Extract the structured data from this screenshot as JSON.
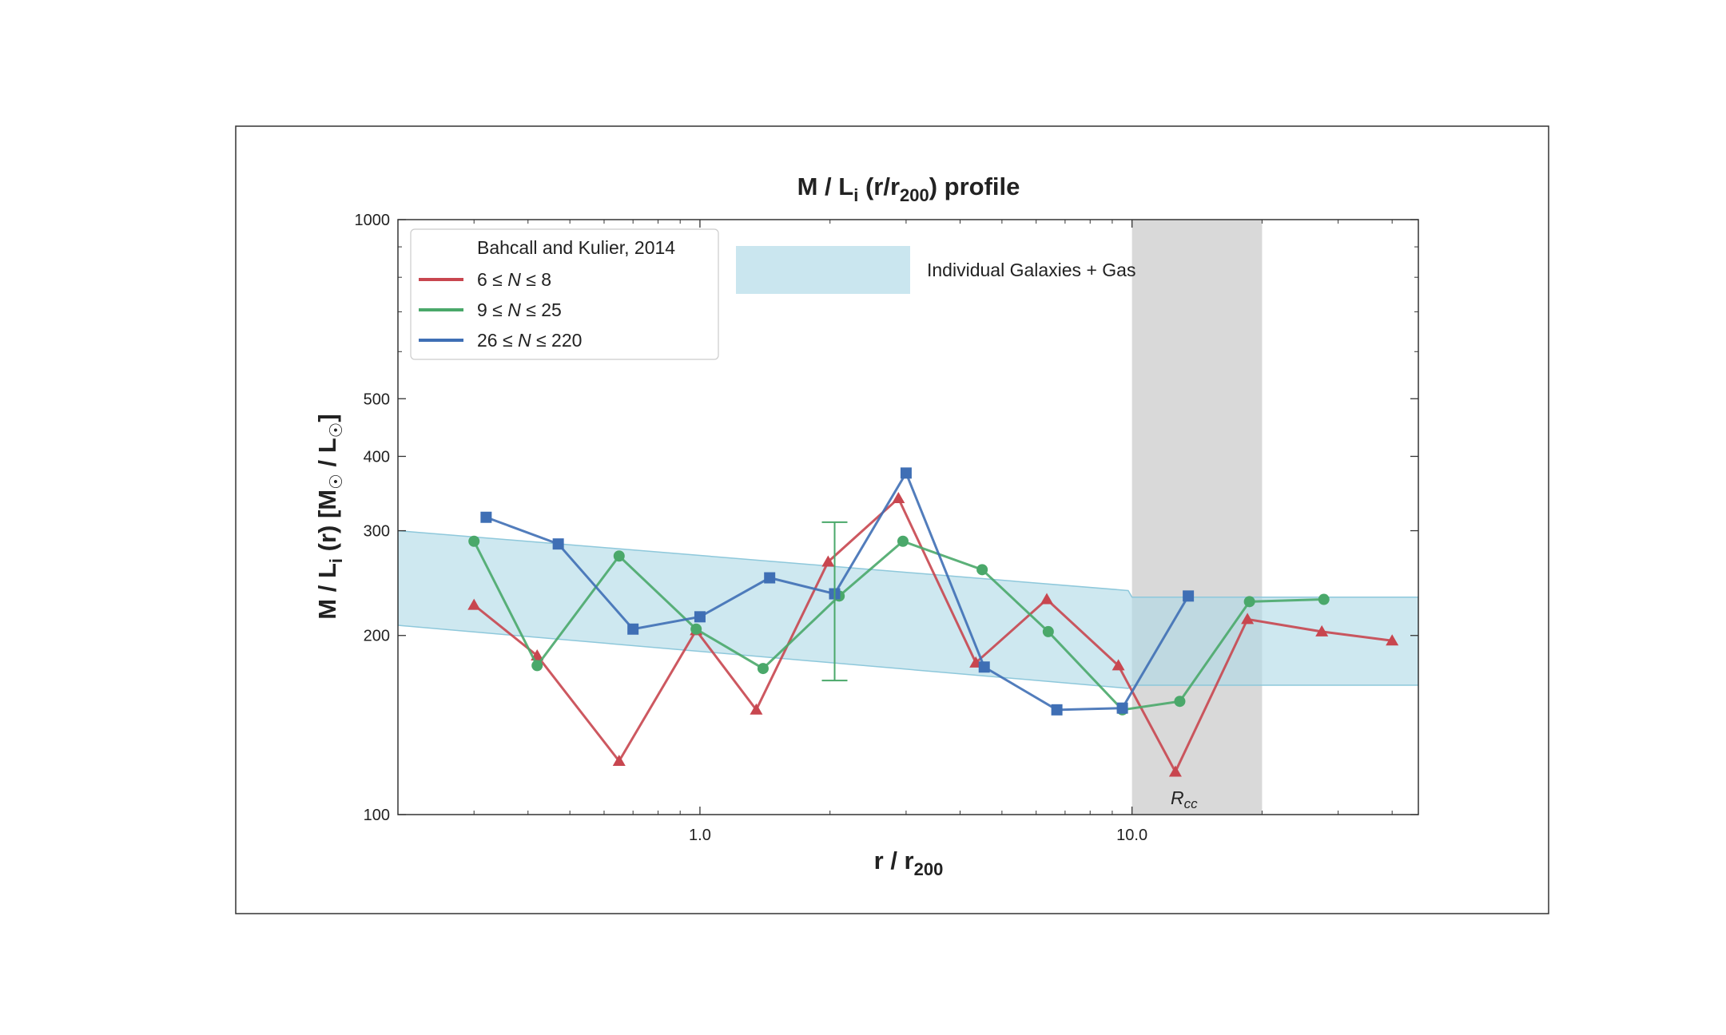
{
  "chart_data": {
    "type": "line",
    "title": "M / L",
    "title_sub": "i",
    "title_mid": " (r/r",
    "title_sub2": "200",
    "title_end": ") profile",
    "xlabel_main": "r / r",
    "xlabel_sub": "200",
    "ylabel_a": "M / L",
    "ylabel_a_sub": "i",
    "ylabel_b": " (r)  [M",
    "ylabel_b_sub": "☉",
    "ylabel_c": " / L",
    "ylabel_c_sub": "☉",
    "ylabel_d": "]",
    "xscale": "log",
    "yscale": "log",
    "xlim": [
      0.2,
      46
    ],
    "ylim": [
      100,
      1000
    ],
    "xticks": [
      {
        "v": 1.0,
        "label": "1.0"
      },
      {
        "v": 10.0,
        "label": "10.0"
      }
    ],
    "yticks": [
      {
        "v": 100,
        "label": "100"
      },
      {
        "v": 200,
        "label": "200"
      },
      {
        "v": 300,
        "label": "300"
      },
      {
        "v": 400,
        "label": "400"
      },
      {
        "v": 500,
        "label": "500"
      },
      {
        "v": 1000,
        "label": "1000"
      }
    ],
    "grid": false,
    "legend_position": "top-left",
    "legend_title": "Bahcall and Kulier, 2014",
    "series": [
      {
        "name": "6 ≤ N ≤ 8",
        "label_lhs": "6 ≤ ",
        "label_var": "N",
        "label_rhs": " ≤ 8",
        "color": "#c8464f",
        "marker": "triangle",
        "x": [
          0.3,
          0.42,
          0.65,
          0.98,
          1.35,
          1.98,
          2.88,
          4.35,
          6.35,
          9.3,
          12.6,
          18.5,
          27.5,
          40
        ],
        "y": [
          225,
          185,
          123,
          204,
          150,
          266,
          340,
          180,
          230,
          178,
          118,
          213,
          203,
          196
        ]
      },
      {
        "name": "9 ≤ N ≤ 25",
        "label_lhs": "9 ≤ ",
        "label_var": "N",
        "label_rhs": " ≤ 25",
        "color": "#4aa86a",
        "marker": "circle",
        "x": [
          0.3,
          0.42,
          0.65,
          0.98,
          1.4,
          2.1,
          2.95,
          4.5,
          6.4,
          9.5,
          12.9,
          18.7,
          27.8
        ],
        "y": [
          288,
          178,
          272,
          205,
          176,
          233,
          288,
          258,
          203,
          150,
          155,
          228,
          230
        ]
      },
      {
        "name": "26 ≤ N ≤ 220",
        "label_lhs": "26 ≤ ",
        "label_var": "N",
        "label_rhs": " ≤ 220",
        "color": "#3f6fb5",
        "marker": "square",
        "x": [
          0.32,
          0.47,
          0.7,
          1.0,
          1.45,
          2.05,
          3.0,
          4.55,
          6.7,
          9.5,
          13.5
        ],
        "y": [
          316,
          285,
          205,
          215,
          250,
          235,
          375,
          177,
          150,
          151,
          233
        ]
      }
    ],
    "errorbar": {
      "x": 2.05,
      "y": 240,
      "ylow": 168,
      "yhigh": 310,
      "color": "#4aa86a"
    },
    "band": {
      "label": "Individual Galaxies + Gas",
      "color": "#add8e6",
      "upper": [
        {
          "x": 0.2,
          "y": 300
        },
        {
          "x": 9.8,
          "y": 238
        },
        {
          "x": 10.0,
          "y": 232
        },
        {
          "x": 46,
          "y": 232
        }
      ],
      "lower": [
        {
          "x": 0.2,
          "y": 208
        },
        {
          "x": 9.8,
          "y": 163
        },
        {
          "x": 10.0,
          "y": 165
        },
        {
          "x": 46,
          "y": 165
        }
      ]
    },
    "shaded_region": {
      "x0": 10.0,
      "x1": 20.0,
      "color": "#d9d9d9",
      "label_main": "R",
      "label_sub": "cc"
    }
  }
}
